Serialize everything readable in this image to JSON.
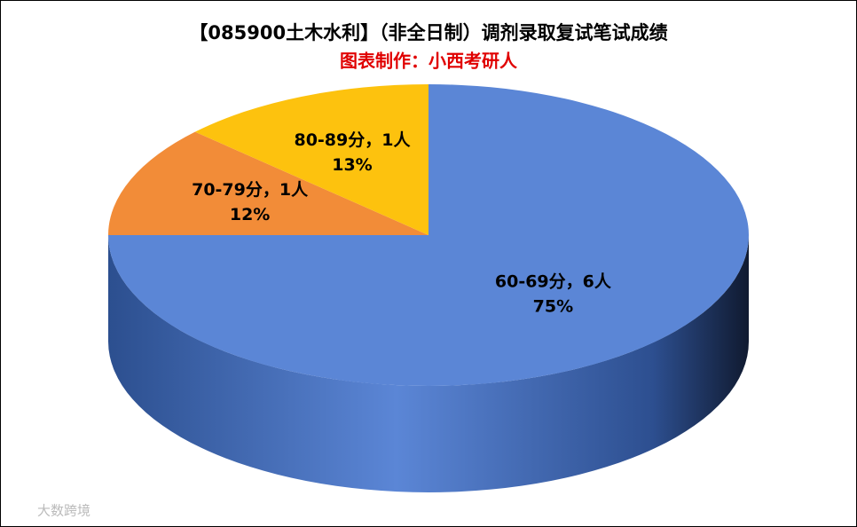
{
  "chart_data": {
    "type": "pie",
    "title": "【085900土木水利】（非全日制）调剂录取复试笔试成绩",
    "subtitle": "图表制作：小西考研人",
    "categories": [
      "60-69分，6人",
      "70-79分，1人",
      "80-89分，1人"
    ],
    "values": [
      75,
      12,
      13
    ],
    "value_labels": [
      "75%",
      "12%",
      "13%"
    ],
    "colors": [
      "#5b86d6",
      "#f28c38",
      "#fdc20e"
    ],
    "watermark": "大数跨境"
  }
}
